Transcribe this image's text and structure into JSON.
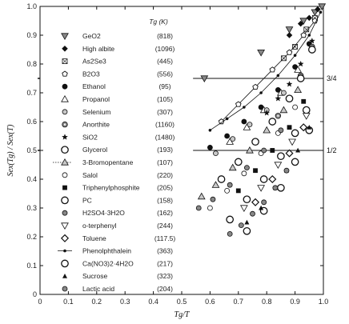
{
  "chart_data": {
    "type": "scatter",
    "xlabel": "Tg/T",
    "ylabel": "Sex(Tg) / Sex(T)",
    "xlim": [
      0,
      1.0
    ],
    "ylim": [
      0,
      1.0
    ],
    "x_ticks": [
      "0",
      "0.1",
      "0.2",
      "0.3",
      "0.4",
      "0.5",
      "0.6",
      "0.7",
      "0.8",
      "0.9",
      "1.0"
    ],
    "y_ticks": [
      "0",
      "0.1",
      "0.2",
      "0.3",
      "0.4",
      "0.5",
      "0.6",
      "0.7",
      "0.8",
      "0.9",
      "1.0"
    ],
    "legend_header": "Tg (K)",
    "reference_lines": [
      {
        "y": 0.75,
        "label": "3/4"
      },
      {
        "y": 0.5,
        "label": "1/2"
      }
    ],
    "legend_placement": "top-left",
    "series": [
      {
        "name": "GeO2",
        "tg": "(818)",
        "marker": "tri-down",
        "fill": "gray",
        "points": [
          [
            0.58,
            0.75
          ],
          [
            0.78,
            0.84
          ],
          [
            0.88,
            0.92
          ],
          [
            0.93,
            0.95
          ],
          [
            0.97,
            0.98
          ],
          [
            0.995,
            1.0
          ]
        ]
      },
      {
        "name": "High albite",
        "tg": "(1096)",
        "marker": "diamond",
        "fill": "black",
        "points": [
          [
            0.88,
            0.9
          ],
          [
            0.92,
            0.94
          ],
          [
            0.95,
            0.96
          ],
          [
            0.98,
            0.99
          ]
        ]
      },
      {
        "name": "As2Se3",
        "tg": "(445)",
        "marker": "square-x",
        "fill": "white",
        "points": [
          [
            0.86,
            0.82
          ],
          [
            0.9,
            0.86
          ],
          [
            0.94,
            0.92
          ],
          [
            0.97,
            0.96
          ]
        ]
      },
      {
        "name": "B2O3",
        "tg": "(556)",
        "marker": "pentagon",
        "fill": "white",
        "points": [
          [
            0.64,
            0.6
          ],
          [
            0.7,
            0.66
          ],
          [
            0.76,
            0.72
          ],
          [
            0.82,
            0.78
          ],
          [
            0.88,
            0.84
          ],
          [
            0.93,
            0.9
          ],
          [
            0.97,
            0.95
          ]
        ]
      },
      {
        "name": "Ethanol",
        "tg": "(95)",
        "marker": "circle",
        "fill": "black",
        "points": [
          [
            0.6,
            0.51
          ],
          [
            0.66,
            0.55
          ],
          [
            0.72,
            0.6
          ],
          [
            0.78,
            0.65
          ],
          [
            0.84,
            0.71
          ],
          [
            0.9,
            0.79
          ],
          [
            0.95,
            0.87
          ]
        ]
      },
      {
        "name": "Propanol",
        "tg": "(105)",
        "marker": "tri-up",
        "fill": "white",
        "points": [
          [
            0.67,
            0.53
          ],
          [
            0.73,
            0.58
          ],
          [
            0.79,
            0.64
          ],
          [
            0.85,
            0.7
          ],
          [
            0.91,
            0.78
          ]
        ]
      },
      {
        "name": "Selenium",
        "tg": "(307)",
        "marker": "circle",
        "fill": "lightgray",
        "points": [
          [
            0.62,
            0.49
          ],
          [
            0.68,
            0.54
          ],
          [
            0.74,
            0.59
          ],
          [
            0.8,
            0.64
          ],
          [
            0.86,
            0.7
          ]
        ]
      },
      {
        "name": "Anorthite",
        "tg": "(1160)",
        "marker": "circle-dot",
        "fill": "gray",
        "points": [
          [
            0.84,
            0.62
          ],
          [
            0.88,
            0.68
          ],
          [
            0.92,
            0.76
          ],
          [
            0.96,
            0.86
          ]
        ]
      },
      {
        "name": "SiO2",
        "tg": "(1480)",
        "marker": "star",
        "fill": "black",
        "points": [
          [
            0.8,
            0.63
          ],
          [
            0.84,
            0.68
          ],
          [
            0.88,
            0.73
          ],
          [
            0.92,
            0.8
          ],
          [
            0.96,
            0.88
          ]
        ]
      },
      {
        "name": "Glycerol",
        "tg": "(193)",
        "marker": "circle-large",
        "fill": "white",
        "points": [
          [
            0.64,
            0.4
          ],
          [
            0.7,
            0.46
          ],
          [
            0.76,
            0.53
          ],
          [
            0.82,
            0.6
          ],
          [
            0.88,
            0.68
          ],
          [
            0.92,
            0.75
          ],
          [
            0.96,
            0.85
          ]
        ]
      },
      {
        "name": "3-Bromopentane",
        "tg": "(107)",
        "marker": "tri-up",
        "fill": "lightgray",
        "points": [
          [
            0.57,
            0.34
          ],
          [
            0.62,
            0.38
          ],
          [
            0.68,
            0.44
          ],
          [
            0.74,
            0.5
          ],
          [
            0.8,
            0.57
          ],
          [
            0.86,
            0.64
          ],
          [
            0.91,
            0.71
          ]
        ]
      },
      {
        "name": "Salol",
        "tg": "(220)",
        "marker": "circle",
        "fill": "white",
        "points": [
          [
            0.6,
            0.3
          ],
          [
            0.66,
            0.36
          ],
          [
            0.72,
            0.42
          ],
          [
            0.78,
            0.49
          ],
          [
            0.84,
            0.56
          ],
          [
            0.9,
            0.65
          ]
        ]
      },
      {
        "name": "Triphenylphosphite",
        "tg": "(205)",
        "marker": "square",
        "fill": "black",
        "points": [
          [
            0.7,
            0.36
          ],
          [
            0.76,
            0.43
          ],
          [
            0.82,
            0.5
          ],
          [
            0.88,
            0.58
          ],
          [
            0.93,
            0.67
          ]
        ]
      },
      {
        "name": "PC",
        "tg": "(158)",
        "marker": "circle-large",
        "fill": "white",
        "points": [
          [
            0.67,
            0.26
          ],
          [
            0.73,
            0.33
          ],
          [
            0.79,
            0.4
          ],
          [
            0.85,
            0.48
          ],
          [
            0.9,
            0.56
          ],
          [
            0.94,
            0.64
          ]
        ]
      },
      {
        "name": "H2SO4·3H2O",
        "tg": "(162)",
        "marker": "circle",
        "fill": "gray",
        "points": [
          [
            0.56,
            0.3
          ],
          [
            0.61,
            0.33
          ],
          [
            0.67,
            0.38
          ],
          [
            0.73,
            0.44
          ],
          [
            0.79,
            0.5
          ],
          [
            0.85,
            0.57
          ]
        ]
      },
      {
        "name": "o-terphenyl",
        "tg": "(244)",
        "marker": "tri-down",
        "fill": "white",
        "points": [
          [
            0.72,
            0.3
          ],
          [
            0.78,
            0.37
          ],
          [
            0.84,
            0.45
          ],
          [
            0.89,
            0.53
          ],
          [
            0.94,
            0.62
          ]
        ]
      },
      {
        "name": "Toluene",
        "tg": "(117.5)",
        "marker": "diamond-open",
        "fill": "white",
        "points": [
          [
            0.76,
            0.32
          ],
          [
            0.82,
            0.4
          ],
          [
            0.88,
            0.49
          ],
          [
            0.93,
            0.58
          ]
        ]
      },
      {
        "name": "Phenolphthalein",
        "tg": "(363)",
        "marker": "small-dot-line",
        "fill": "black",
        "points": [
          [
            0.6,
            0.57
          ],
          [
            0.66,
            0.61
          ],
          [
            0.72,
            0.65
          ],
          [
            0.78,
            0.7
          ],
          [
            0.84,
            0.76
          ],
          [
            0.9,
            0.83
          ],
          [
            0.95,
            0.9
          ],
          [
            0.99,
            0.98
          ]
        ]
      },
      {
        "name": "Ca(NO3)2·4H2O",
        "tg": "(217)",
        "marker": "circle-large",
        "fill": "white",
        "points": [
          [
            0.73,
            0.22
          ],
          [
            0.79,
            0.29
          ],
          [
            0.85,
            0.37
          ],
          [
            0.9,
            0.46
          ],
          [
            0.95,
            0.57
          ]
        ]
      },
      {
        "name": "Sucrose",
        "tg": "(323)",
        "marker": "tri-up-small",
        "fill": "black",
        "points": [
          [
            0.73,
            0.25
          ],
          [
            0.78,
            0.3
          ],
          [
            0.83,
            0.37
          ],
          [
            0.87,
            0.43
          ],
          [
            0.91,
            0.5
          ],
          [
            0.95,
            0.58
          ]
        ]
      },
      {
        "name": "Lactic acid",
        "tg": "(204)",
        "marker": "circle",
        "fill": "gray",
        "points": [
          [
            0.67,
            0.21
          ],
          [
            0.71,
            0.24
          ],
          [
            0.75,
            0.28
          ],
          [
            0.79,
            0.32
          ],
          [
            0.83,
            0.37
          ],
          [
            0.87,
            0.43
          ]
        ]
      }
    ]
  }
}
